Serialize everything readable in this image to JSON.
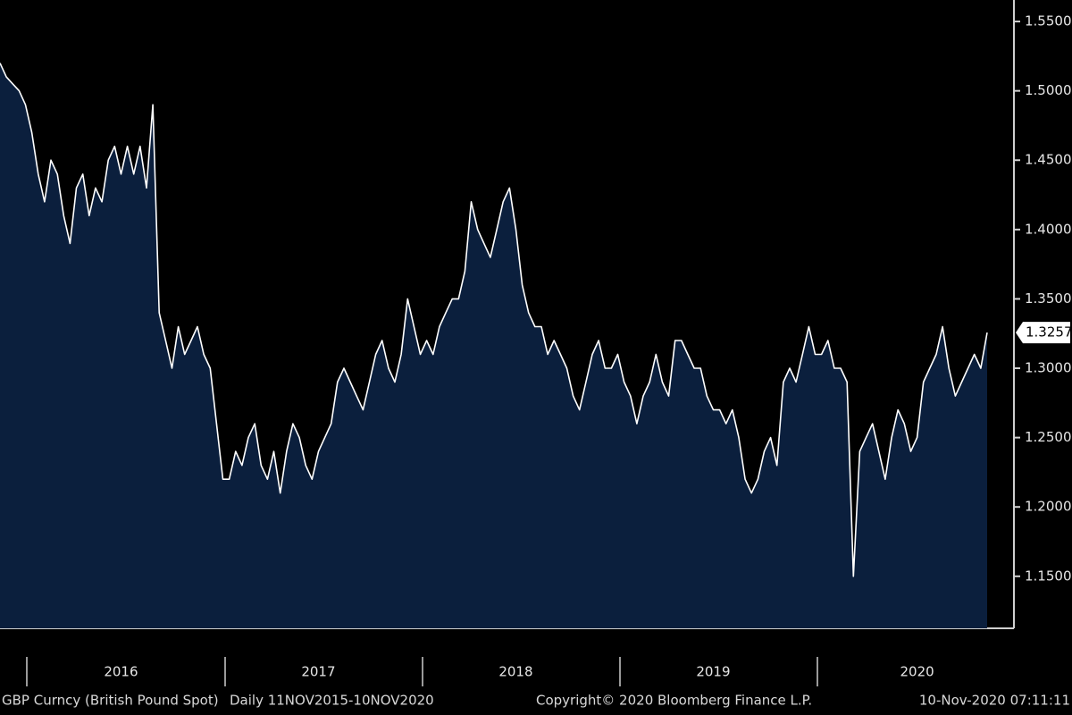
{
  "chart_data": {
    "type": "area",
    "footer_left": "GBP Curncy (British Pound Spot)",
    "footer_range": "Daily 11NOV2015-10NOV2020",
    "footer_copyright": "Copyright© 2020 Bloomberg Finance L.P.",
    "footer_time": "10-Nov-2020 07:11:11",
    "line_color": "#ffffff",
    "color": "#0b1f3d",
    "categories": [
      null,
      null,
      null,
      null,
      null,
      null,
      null,
      null,
      null,
      null,
      null,
      null,
      null,
      null,
      null,
      null,
      null,
      null,
      null,
      "2016",
      null,
      null,
      null,
      null,
      null,
      null,
      null,
      null,
      null,
      null,
      null,
      null,
      null,
      null,
      null,
      null,
      null,
      null,
      null,
      null,
      null,
      null,
      null,
      null,
      null,
      null,
      null,
      null,
      null,
      null,
      "2017",
      null,
      null,
      null,
      null,
      null,
      null,
      null,
      null,
      null,
      null,
      null,
      null,
      null,
      null,
      null,
      null,
      null,
      null,
      null,
      null,
      null,
      null,
      null,
      null,
      null,
      null,
      null,
      null,
      null,
      null,
      "2018",
      null,
      null,
      null,
      null,
      null,
      null,
      null,
      null,
      null,
      null,
      null,
      null,
      null,
      null,
      null,
      null,
      null,
      null,
      null,
      null,
      null,
      null,
      null,
      null,
      null,
      null,
      null,
      null,
      null,
      null,
      "2019",
      null,
      null,
      null,
      null,
      null,
      null,
      null,
      null,
      null,
      null,
      null,
      null,
      null,
      null,
      null,
      null,
      null,
      null,
      null,
      null,
      null,
      null,
      null,
      null,
      null,
      null,
      null,
      null,
      null,
      null,
      null,
      "2020",
      null,
      null,
      null,
      null,
      null,
      null,
      null,
      null,
      null,
      null,
      null
    ],
    "values": [
      1.52,
      1.51,
      1.505,
      1.5,
      1.49,
      1.47,
      1.44,
      1.42,
      1.45,
      1.44,
      1.41,
      1.39,
      1.43,
      1.44,
      1.41,
      1.43,
      1.42,
      1.45,
      1.46,
      1.44,
      1.46,
      1.44,
      1.46,
      1.43,
      1.49,
      1.34,
      1.32,
      1.3,
      1.33,
      1.31,
      1.32,
      1.33,
      1.31,
      1.3,
      1.26,
      1.22,
      1.22,
      1.24,
      1.23,
      1.25,
      1.26,
      1.23,
      1.22,
      1.24,
      1.21,
      1.24,
      1.26,
      1.25,
      1.23,
      1.22,
      1.24,
      1.25,
      1.26,
      1.29,
      1.3,
      1.29,
      1.28,
      1.27,
      1.29,
      1.31,
      1.32,
      1.3,
      1.29,
      1.31,
      1.35,
      1.33,
      1.31,
      1.32,
      1.31,
      1.33,
      1.34,
      1.35,
      1.35,
      1.37,
      1.42,
      1.4,
      1.39,
      1.38,
      1.4,
      1.42,
      1.43,
      1.4,
      1.36,
      1.34,
      1.33,
      1.33,
      1.31,
      1.32,
      1.31,
      1.3,
      1.28,
      1.27,
      1.29,
      1.31,
      1.32,
      1.3,
      1.3,
      1.31,
      1.29,
      1.28,
      1.26,
      1.28,
      1.29,
      1.31,
      1.29,
      1.28,
      1.32,
      1.32,
      1.31,
      1.3,
      1.3,
      1.28,
      1.27,
      1.27,
      1.26,
      1.27,
      1.25,
      1.22,
      1.21,
      1.22,
      1.24,
      1.25,
      1.23,
      1.29,
      1.3,
      1.29,
      1.31,
      1.33,
      1.31,
      1.31,
      1.32,
      1.3,
      1.3,
      1.29,
      1.15,
      1.24,
      1.25,
      1.26,
      1.24,
      1.22,
      1.25,
      1.27,
      1.26,
      1.24,
      1.25,
      1.29,
      1.3,
      1.31,
      1.33,
      1.3,
      1.28,
      1.29,
      1.3,
      1.31,
      1.3,
      1.3257
    ],
    "ylim": [
      1.1125,
      1.5655
    ],
    "yticks": [
      {
        "value": 1.15,
        "label": "1.1500"
      },
      {
        "value": 1.2,
        "label": "1.2000"
      },
      {
        "value": 1.25,
        "label": "1.2500"
      },
      {
        "value": 1.3,
        "label": "1.3000"
      },
      {
        "value": 1.35,
        "label": "1.3500"
      },
      {
        "value": 1.4,
        "label": "1.4000"
      },
      {
        "value": 1.45,
        "label": "1.4500"
      },
      {
        "value": 1.5,
        "label": "1.5000"
      },
      {
        "value": 1.55,
        "label": "1.5500"
      }
    ]
  }
}
